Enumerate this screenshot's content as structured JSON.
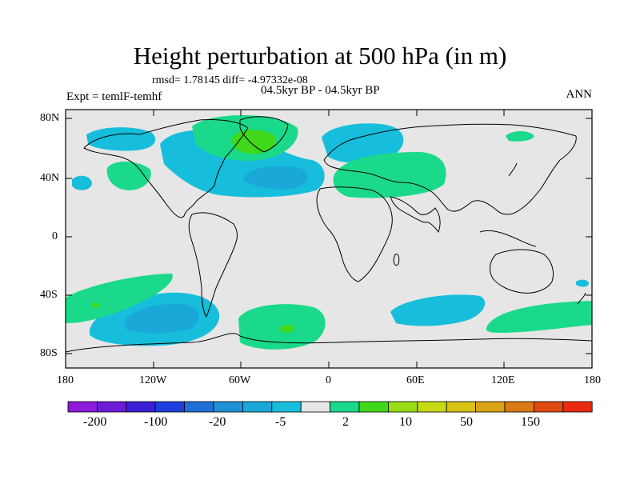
{
  "figure": {
    "title": "Height perturbation at 500 hPa (in m)",
    "stats": "rmsd= 1.78145 diff= -4.97332e-08",
    "subtitle": "04.5kyr BP - 04.5kyr BP",
    "experiment": "Expt = temlF-temhf",
    "season": "ANN"
  },
  "axes": {
    "lat_ticks": [
      "80N",
      "40N",
      "0",
      "40S",
      "80S"
    ],
    "lon_ticks": [
      "180",
      "120W",
      "60W",
      "0",
      "60E",
      "120E",
      "180"
    ]
  },
  "colorbar": {
    "labels": [
      "-200",
      "-100",
      "-20",
      "-5",
      "2",
      "10",
      "50",
      "150"
    ],
    "colors": [
      "#8a1bd9",
      "#6d1bd9",
      "#3b1fd6",
      "#1e3fdc",
      "#1f6fd8",
      "#1f8fd6",
      "#19a8d8",
      "#17bedb",
      "#e6e6e6",
      "#1bd98a",
      "#3fd81a",
      "#99dc16",
      "#c7d814",
      "#d8c214",
      "#d8a314",
      "#d87a13",
      "#e0490f",
      "#ea2a10"
    ]
  },
  "colors": {
    "ocean_background": "#e6e6e6",
    "negative_anomaly": "#17bedb",
    "strong_negative_anomaly": "#19a8d8",
    "positive_anomaly": "#1bd98a",
    "strong_positive_anomaly": "#3fd81a"
  }
}
